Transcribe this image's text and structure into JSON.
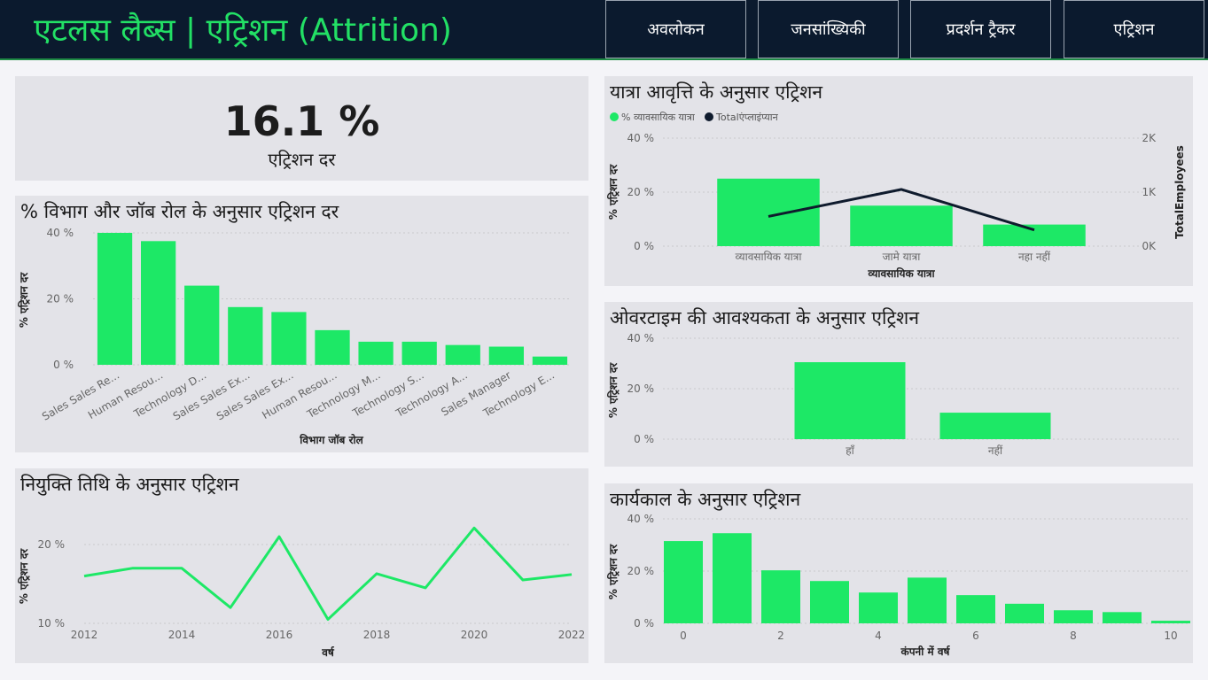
{
  "header": {
    "title": "एटलस लैब्स | एट्रिशन (Attrition)",
    "tabs": [
      {
        "label": "अवलोकन"
      },
      {
        "label": "जनसांख्यिकी"
      },
      {
        "label": "प्रदर्शन ट्रैकर"
      },
      {
        "label": "एट्रिशन"
      }
    ]
  },
  "kpi": {
    "value": "16.1 %",
    "label": "एट्रिशन दर"
  },
  "colors": {
    "accent": "#1de866",
    "header_bg": "#0b1a2e",
    "panel_bg": "#e3e3e8",
    "line_dark": "#0f1b2d"
  },
  "charts": {
    "department": {
      "title": "% विभाग और जॉब रोल के अनुसार एट्रिशन दर",
      "chart_data": {
        "type": "bar",
        "categories": [
          "Sales Sales Re...",
          "Human Resou...",
          "Technology D...",
          "Sales Sales Ex...",
          "Sales Sales Ex...",
          "Human Resou...",
          "Technology M...",
          "Technology S...",
          "Technology A...",
          "Sales Manager",
          "Technology E..."
        ],
        "values": [
          40,
          37.5,
          24,
          17.5,
          16,
          10.5,
          7,
          7,
          6,
          5.5,
          2.5
        ],
        "xlabel": "विभाग जॉब रोल",
        "ylabel": "% एट्रिशन दर",
        "ylim": [
          0,
          40
        ],
        "yticks": [
          "0 %",
          "20 %",
          "40 %"
        ]
      }
    },
    "hire_date": {
      "title": "नियुक्ति तिथि के अनुसार एट्रिशन",
      "chart_data": {
        "type": "line",
        "x": [
          2012,
          2013,
          2014,
          2015,
          2016,
          2017,
          2018,
          2019,
          2020,
          2021,
          2022
        ],
        "values": [
          16,
          17,
          17,
          12,
          21,
          10.5,
          16.3,
          14.5,
          22.1,
          15.5,
          16.2
        ],
        "xticks": [
          "2012",
          "2014",
          "2016",
          "2018",
          "2020",
          "2022"
        ],
        "xlabel": "वर्ष",
        "ylabel": "% एट्रिशन दर",
        "ylim": [
          10,
          20
        ],
        "yticks": [
          "10 %",
          "20 %"
        ]
      }
    },
    "travel": {
      "title": "यात्रा आवृत्ति के अनुसार एट्रिशन",
      "chart_data": {
        "type": "bar",
        "categories": [
          "व्यावसायिक यात्रा",
          "जामे यात्रा",
          "नहा नहीं"
        ],
        "series": [
          {
            "name": "% व्यावसायिक यात्रा",
            "values": [
              25,
              15,
              8
            ]
          },
          {
            "name": "Totalएंप्लाइंप्यान",
            "values": [
              550,
              1050,
              300
            ]
          }
        ],
        "xlabel": "व्यावसायिक यात्रा",
        "ylabel": "% एट्रिशन दर",
        "y2label": "TotalEmployees",
        "ylim": [
          0,
          40
        ],
        "y2lim": [
          0,
          2000
        ],
        "yticks": [
          "0 %",
          "20 %",
          "40 %"
        ],
        "y2ticks": [
          "0K",
          "1K",
          "2K"
        ]
      }
    },
    "overtime": {
      "title": "ओवरटाइम की आवश्यकता के अनुसार एट्रिशन",
      "chart_data": {
        "type": "bar",
        "categories": [
          "हाँ",
          "नहीं"
        ],
        "values": [
          30.5,
          10.5
        ],
        "ylabel": "% एट्रिशन दर",
        "ylim": [
          0,
          40
        ],
        "yticks": [
          "0 %",
          "20 %",
          "40 %"
        ]
      }
    },
    "tenure": {
      "title": "कार्यकाल के अनुसार एट्रिशन",
      "chart_data": {
        "type": "bar",
        "categories": [
          "0",
          "1",
          "2",
          "3",
          "4",
          "5",
          "6",
          "7",
          "8",
          "9",
          "10"
        ],
        "values": [
          31.5,
          34.5,
          20.3,
          16.2,
          11.8,
          17.5,
          10.8,
          7.5,
          5,
          4.3,
          1
        ],
        "xticks": [
          "0",
          "2",
          "4",
          "6",
          "8",
          "10"
        ],
        "xlabel": "कंपनी में वर्ष",
        "ylabel": "% एट्रिशन दर",
        "ylim": [
          0,
          40
        ],
        "yticks": [
          "0 %",
          "20 %",
          "40 %"
        ]
      }
    }
  }
}
